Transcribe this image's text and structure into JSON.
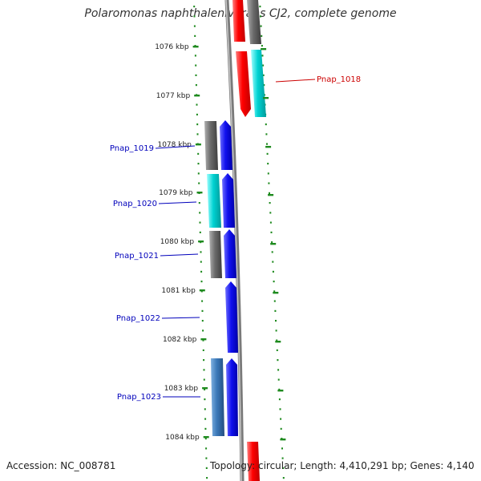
{
  "title": "Polaromonas naphthalenivorans CJ2, complete genome",
  "footer": {
    "accession": "Accession: NC_008781",
    "topology": "Topology: circular; Length: 4,410,291 bp; Genes: 4,140"
  },
  "colors": {
    "red": "#ff0000",
    "cyan": "#00d2d2",
    "gray": "#6a6a6a",
    "blue": "#1010ee",
    "tick": "#1e8a1e",
    "label_blue": "#0000bb",
    "label_red": "#cc0000"
  },
  "kbp_ticks": [
    {
      "label": "1076 kbp"
    },
    {
      "label": "1077 kbp"
    },
    {
      "label": "1078 kbp"
    },
    {
      "label": "1079 kbp"
    },
    {
      "label": "1080 kbp"
    },
    {
      "label": "1081 kbp"
    },
    {
      "label": "1082 kbp"
    },
    {
      "label": "1083 kbp"
    },
    {
      "label": "1084 kbp"
    }
  ],
  "gene_labels": [
    {
      "text": "Pnap_1018",
      "color": "red"
    },
    {
      "text": "Pnap_1019",
      "color": "blue"
    },
    {
      "text": "Pnap_1020",
      "color": "blue"
    },
    {
      "text": "Pnap_1021",
      "color": "blue"
    },
    {
      "text": "Pnap_1022",
      "color": "blue"
    },
    {
      "text": "Pnap_1023",
      "color": "blue"
    }
  ]
}
